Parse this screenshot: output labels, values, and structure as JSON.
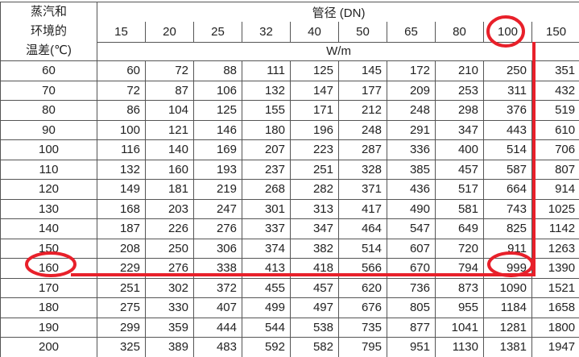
{
  "header": {
    "row_label": [
      "蒸汽和",
      "环境的",
      "温差(℃)"
    ],
    "group_title": "管径 (DN)",
    "unit": "W/m",
    "sizes": [
      "15",
      "20",
      "25",
      "32",
      "40",
      "50",
      "65",
      "80",
      "100",
      "150"
    ]
  },
  "rows": [
    [
      "60",
      "60",
      "72",
      "88",
      "111",
      "125",
      "145",
      "172",
      "210",
      "250",
      "351"
    ],
    [
      "70",
      "72",
      "87",
      "106",
      "132",
      "147",
      "177",
      "209",
      "253",
      "311",
      "432"
    ],
    [
      "80",
      "86",
      "104",
      "125",
      "155",
      "171",
      "212",
      "248",
      "298",
      "376",
      "519"
    ],
    [
      "90",
      "100",
      "121",
      "146",
      "180",
      "196",
      "248",
      "291",
      "347",
      "443",
      "610"
    ],
    [
      "100",
      "116",
      "140",
      "169",
      "207",
      "223",
      "287",
      "336",
      "400",
      "514",
      "706"
    ],
    [
      "110",
      "132",
      "160",
      "193",
      "237",
      "251",
      "328",
      "385",
      "457",
      "587",
      "807"
    ],
    [
      "120",
      "149",
      "181",
      "219",
      "268",
      "282",
      "371",
      "436",
      "517",
      "664",
      "914"
    ],
    [
      "130",
      "168",
      "203",
      "247",
      "301",
      "313",
      "417",
      "490",
      "581",
      "743",
      "1025"
    ],
    [
      "140",
      "187",
      "226",
      "276",
      "337",
      "347",
      "464",
      "547",
      "649",
      "825",
      "1142"
    ],
    [
      "150",
      "208",
      "250",
      "306",
      "374",
      "382",
      "514",
      "607",
      "720",
      "911",
      "1263"
    ],
    [
      "160",
      "229",
      "276",
      "338",
      "413",
      "418",
      "566",
      "670",
      "794",
      "999",
      "1390"
    ],
    [
      "170",
      "251",
      "302",
      "372",
      "455",
      "457",
      "620",
      "736",
      "873",
      "1090",
      "1521"
    ],
    [
      "180",
      "275",
      "330",
      "407",
      "499",
      "497",
      "676",
      "805",
      "955",
      "1184",
      "1658"
    ],
    [
      "190",
      "299",
      "359",
      "444",
      "544",
      "538",
      "735",
      "877",
      "1041",
      "1281",
      "1800"
    ],
    [
      "200",
      "325",
      "389",
      "483",
      "592",
      "582",
      "795",
      "951",
      "1130",
      "1381",
      "1947"
    ]
  ],
  "annotation_color": "#e8202a"
}
